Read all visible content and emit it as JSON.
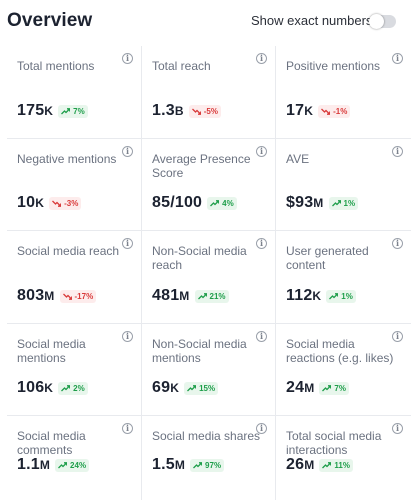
{
  "header": {
    "title": "Overview",
    "toggle_label": "Show exact numbers",
    "toggle_on": false
  },
  "colors": {
    "up": "#1e9e4a",
    "down": "#d93a3a",
    "text": "#1c2230",
    "label": "#6b7280"
  },
  "metrics": [
    {
      "label": "Total mentions",
      "value": "175",
      "unit": "K",
      "change": "7%",
      "dir": "up"
    },
    {
      "label": "Total reach",
      "value": "1.3",
      "unit": "B",
      "change": "-5%",
      "dir": "down"
    },
    {
      "label": "Positive mentions",
      "value": "17",
      "unit": "K",
      "change": "-1%",
      "dir": "down"
    },
    {
      "label": "Negative mentions",
      "value": "10",
      "unit": "K",
      "change": "-3%",
      "dir": "down"
    },
    {
      "label": "Average Presence Score",
      "value": "85/100",
      "unit": "",
      "change": "4%",
      "dir": "up"
    },
    {
      "label": "AVE",
      "value": "$93",
      "unit": "M",
      "change": "1%",
      "dir": "up"
    },
    {
      "label": "Social media reach",
      "value": "803",
      "unit": "M",
      "change": "-17%",
      "dir": "down"
    },
    {
      "label": "Non-Social media reach",
      "value": "481",
      "unit": "M",
      "change": "21%",
      "dir": "up"
    },
    {
      "label": "User generated content",
      "value": "112",
      "unit": "K",
      "change": "1%",
      "dir": "up"
    },
    {
      "label": "Social media mentions",
      "value": "106",
      "unit": "K",
      "change": "2%",
      "dir": "up"
    },
    {
      "label": "Non-Social media mentions",
      "value": "69",
      "unit": "K",
      "change": "15%",
      "dir": "up"
    },
    {
      "label": "Social media reactions (e.g. likes)",
      "value": "24",
      "unit": "M",
      "change": "7%",
      "dir": "up"
    },
    {
      "label": "Social media comments",
      "value": "1.1",
      "unit": "M",
      "change": "24%",
      "dir": "up"
    },
    {
      "label": "Social media shares",
      "value": "1.5",
      "unit": "M",
      "change": "97%",
      "dir": "up"
    },
    {
      "label": "Total social media interactions",
      "value": "26",
      "unit": "M",
      "change": "11%",
      "dir": "up"
    }
  ]
}
